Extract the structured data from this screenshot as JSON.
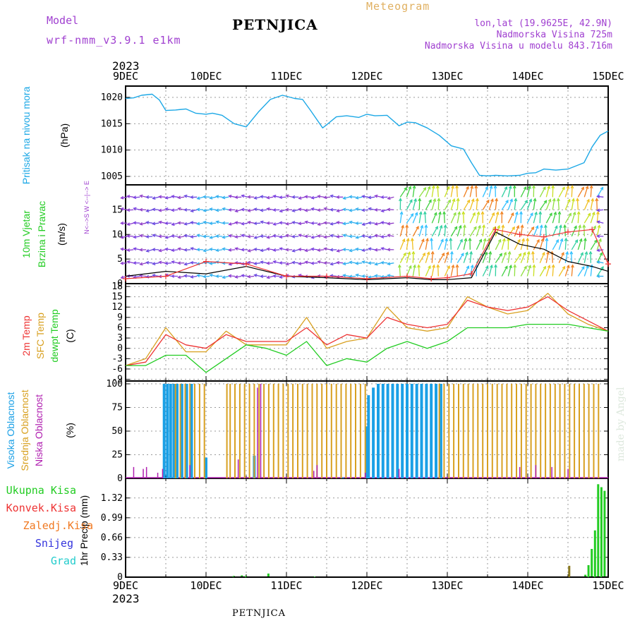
{
  "header": {
    "model_label": "Model",
    "model_name": "wrf-nmm_v3.9.1  e1km",
    "station": "PETNJICA",
    "product": "Meteogram",
    "lonlat": "lon,lat (19.9625E, 42.9N)",
    "elevation": "Nadmorska Visina 725m",
    "model_elevation": "Nadmorska Visina u modelu 843.716m",
    "year_top": "2023",
    "year_bottom": "2023",
    "footer_station": "PETNJICA",
    "watermark": "made by Angel"
  },
  "colors": {
    "pressure": "#1ca8e6",
    "wind_label": "#22cc22",
    "temp2m": "#ee3333",
    "sfc": "#d8a020",
    "dewpt": "#22cc22",
    "high_cloud": "#1aa0e6",
    "mid_cloud": "#d8a020",
    "low_cloud": "#b020b0",
    "precip_total": "#22cc22",
    "precip_conv": "#ee3333",
    "precip_frz": "#f07820",
    "snow": "#3333dd",
    "hail": "#22cccc",
    "header_purple": "#a040d0",
    "header_gold": "#e0b060"
  },
  "chart_data": [
    {
      "type": "line",
      "name": "pressure",
      "ylabel": [
        "Pritisak na nivou mora",
        "(hPa)"
      ],
      "x_ticks": [
        "9DEC",
        "10DEC",
        "11DEC",
        "12DEC",
        "13DEC",
        "14DEC",
        "15DEC"
      ],
      "yticks": [
        1005,
        1010,
        1015,
        1020
      ],
      "ylim": [
        1003.4,
        1021.6
      ],
      "grid": true,
      "x": [
        0,
        0.1,
        0.2,
        0.33,
        0.42,
        0.5,
        0.62,
        0.75,
        0.87,
        1.0,
        1.08,
        1.2,
        1.35,
        1.5,
        1.65,
        1.8,
        1.95,
        2.1,
        2.2,
        2.3,
        2.45,
        2.5,
        2.62,
        2.75,
        2.9,
        3.0,
        3.1,
        3.25,
        3.4,
        3.5,
        3.6,
        3.75,
        3.9,
        4.05,
        4.2,
        4.3,
        4.4,
        4.5,
        4.6,
        4.75,
        4.9,
        5.0,
        5.1,
        5.2,
        5.35,
        5.5,
        5.6,
        5.7,
        5.8,
        5.9,
        6.0
      ],
      "y": [
        1019.8,
        1019.9,
        1020.4,
        1020.6,
        1019.5,
        1017.5,
        1017.6,
        1017.8,
        1017.0,
        1016.8,
        1017.0,
        1016.6,
        1015.0,
        1014.4,
        1017.2,
        1019.6,
        1020.4,
        1019.8,
        1019.6,
        1017.5,
        1014.2,
        1014.8,
        1016.3,
        1016.5,
        1016.2,
        1016.8,
        1016.5,
        1016.6,
        1014.6,
        1015.3,
        1015.2,
        1014.2,
        1012.8,
        1010.8,
        1010.2,
        1007.6,
        1005.2,
        1005.1,
        1005.2,
        1005.1,
        1005.2,
        1005.6,
        1005.7,
        1006.4,
        1006.2,
        1006.4,
        1007.0,
        1007.6,
        1010.6,
        1012.8,
        1013.6
      ]
    },
    {
      "type": "line",
      "name": "wind",
      "ylabel": [
        "10m Vjetar",
        "Brzina i Pravac",
        "(m/s)"
      ],
      "direction_legend": "N<-->S  W <--|--> E",
      "yticks": [
        0,
        5,
        10,
        15
      ],
      "ylim": [
        0,
        19.5
      ],
      "grid": true,
      "series": [
        {
          "name": "speed",
          "x": [
            0,
            0.5,
            1.0,
            1.5,
            2.0,
            2.5,
            3.0,
            3.5,
            3.8,
            4.0,
            4.3,
            4.6,
            4.9,
            5.2,
            5.5,
            5.8,
            6.0
          ],
          "y": [
            1.5,
            2.5,
            2.0,
            3.5,
            1.5,
            1.2,
            0.8,
            1.2,
            0.8,
            0.8,
            1.2,
            10.5,
            8.0,
            7.0,
            4.5,
            3.5,
            2.5
          ]
        },
        {
          "name": "gust",
          "x": [
            0,
            0.5,
            1.0,
            1.5,
            2.0,
            2.5,
            3.0,
            3.5,
            3.8,
            4.0,
            4.3,
            4.6,
            4.9,
            5.2,
            5.5,
            5.8,
            6.0
          ],
          "y": [
            1.0,
            1.5,
            4.5,
            4.0,
            1.5,
            1.5,
            1.0,
            1.5,
            1.0,
            1.2,
            2.0,
            11.0,
            10.0,
            9.5,
            10.5,
            11.0,
            4.0
          ]
        }
      ]
    },
    {
      "type": "line",
      "name": "temperature",
      "ylabel": [
        "2m Temp",
        "SFC Temp",
        "dewpt Temp",
        "(C)"
      ],
      "yticks": [
        -9,
        -6,
        -3,
        0,
        3,
        6,
        9,
        12,
        15,
        18
      ],
      "ylim": [
        -9.5,
        18
      ],
      "grid": true,
      "x": [
        0,
        0.25,
        0.5,
        0.75,
        1.0,
        1.25,
        1.5,
        1.75,
        2.0,
        2.25,
        2.5,
        2.75,
        3.0,
        3.25,
        3.5,
        3.75,
        4.0,
        4.25,
        4.5,
        4.75,
        5.0,
        5.25,
        5.5,
        5.75,
        6.0
      ],
      "series": [
        {
          "name": "2m Temp",
          "values": [
            -5,
            -4,
            4,
            1,
            0,
            4,
            2,
            2,
            2,
            6,
            1,
            4,
            3,
            9,
            7,
            6,
            7,
            14,
            12,
            11,
            12,
            15,
            11,
            8,
            5
          ]
        },
        {
          "name": "SFC Temp",
          "values": [
            -5,
            -3,
            6,
            -1,
            -1,
            5,
            1,
            1,
            1,
            9,
            0,
            2,
            3,
            12,
            6,
            5,
            6,
            15,
            12,
            10,
            11,
            16,
            10,
            7,
            5
          ]
        },
        {
          "name": "dewpt Temp",
          "values": [
            -5,
            -5,
            -2,
            -2,
            -7,
            -3,
            1,
            0,
            -2,
            2,
            -5,
            -3,
            -4,
            0,
            2,
            0,
            2,
            6,
            6,
            6,
            7,
            7,
            7,
            6,
            5
          ]
        }
      ]
    },
    {
      "type": "bar",
      "name": "cloud",
      "ylabel": [
        "Visoka Oblacnost",
        "Srednja Oblacnost",
        "Niska Oblacnost",
        "(%)"
      ],
      "yticks": [
        0,
        25,
        50,
        75,
        100
      ],
      "ylim": [
        0,
        100
      ],
      "grid": true,
      "series": [
        {
          "name": "Visoka Oblacnost",
          "x": [
            0.48,
            0.52,
            0.56,
            0.6,
            0.64,
            0.7,
            0.76,
            0.82,
            1.0,
            1.6,
            2.7,
            3.0,
            3.02,
            3.08,
            3.14,
            3.2,
            3.26,
            3.32,
            3.38,
            3.44,
            3.5,
            3.56,
            3.62,
            3.68,
            3.74,
            3.8,
            3.86,
            3.92
          ],
          "values": [
            100,
            100,
            100,
            100,
            100,
            100,
            100,
            100,
            22,
            24,
            1,
            55,
            88,
            96,
            100,
            100,
            100,
            100,
            100,
            100,
            100,
            100,
            100,
            100,
            100,
            100,
            100,
            100
          ]
        },
        {
          "name": "Srednja Oblacnost",
          "x": [
            0.62,
            0.68,
            0.74,
            0.8,
            0.86,
            0.92,
            0.98,
            1.26,
            1.3,
            1.36,
            1.42,
            1.48,
            1.54,
            1.6,
            1.66,
            1.72,
            1.78,
            1.84,
            1.9,
            1.96,
            2.02,
            2.08,
            2.14,
            2.2,
            2.26,
            2.32,
            2.38,
            2.44,
            2.5,
            2.56,
            2.62,
            2.68,
            2.74,
            2.8,
            2.86,
            2.92,
            2.98,
            3.9,
            3.96,
            4.02,
            4.08,
            4.14,
            4.2,
            4.26,
            4.32,
            4.38,
            4.44,
            4.5,
            4.56,
            4.62,
            4.68,
            4.74,
            4.8,
            4.86,
            4.92,
            4.98,
            5.04,
            5.1,
            5.16,
            5.22,
            5.28,
            5.34,
            5.4,
            5.46,
            5.52,
            5.58,
            5.64,
            5.7,
            5.76,
            5.82,
            5.88
          ],
          "values": [
            100,
            100,
            100,
            100,
            100,
            100,
            100,
            100,
            100,
            100,
            100,
            100,
            100,
            100,
            100,
            100,
            100,
            100,
            100,
            100,
            100,
            100,
            100,
            100,
            100,
            100,
            100,
            100,
            100,
            100,
            100,
            100,
            100,
            100,
            100,
            100,
            100,
            100,
            100,
            100,
            100,
            100,
            100,
            100,
            100,
            100,
            100,
            100,
            100,
            100,
            100,
            100,
            100,
            100,
            100,
            100,
            100,
            100,
            100,
            100,
            100,
            100,
            100,
            100,
            100,
            100,
            100,
            100,
            100,
            100,
            100
          ]
        },
        {
          "name": "Niska Oblacnost",
          "x": [
            0.1,
            0.22,
            0.26,
            0.4,
            0.46,
            0.8,
            1.4,
            1.64,
            1.68,
            2.34,
            2.38,
            2.98,
            3.4,
            4.9,
            5.1,
            5.3,
            5.5
          ],
          "values": [
            12,
            10,
            12,
            6,
            10,
            14,
            20,
            96,
            100,
            8,
            14,
            6,
            10,
            12,
            14,
            12,
            10
          ]
        }
      ]
    },
    {
      "type": "bar",
      "name": "precipitation",
      "ylabel": [
        "1hr Precip (mm)"
      ],
      "legend": [
        "Ukupna Kisa",
        "Konvek.Kisa",
        "Zaledj.Kisa",
        "Snijeg",
        "Grad"
      ],
      "yticks": [
        0,
        0.33,
        0.66,
        0.99,
        1.32
      ],
      "ylim": [
        0,
        1.6
      ],
      "grid": true,
      "x_ticks": [
        "9DEC",
        "10DEC",
        "11DEC",
        "12DEC",
        "13DEC",
        "14DEC",
        "15DEC"
      ],
      "series": [
        {
          "name": "Ukupna Kisa",
          "x": [
            1.35,
            1.45,
            1.5,
            1.78,
            2.35,
            5.72,
            5.76,
            5.8,
            5.84,
            5.88,
            5.92,
            5.96
          ],
          "values": [
            0.02,
            0.03,
            0.02,
            0.06,
            0.01,
            0.04,
            0.2,
            0.47,
            0.78,
            1.55,
            1.5,
            1.44
          ]
        },
        {
          "name": "Zaledj.Kisa",
          "x": [
            5.52
          ],
          "values": [
            0.19
          ]
        }
      ]
    }
  ]
}
